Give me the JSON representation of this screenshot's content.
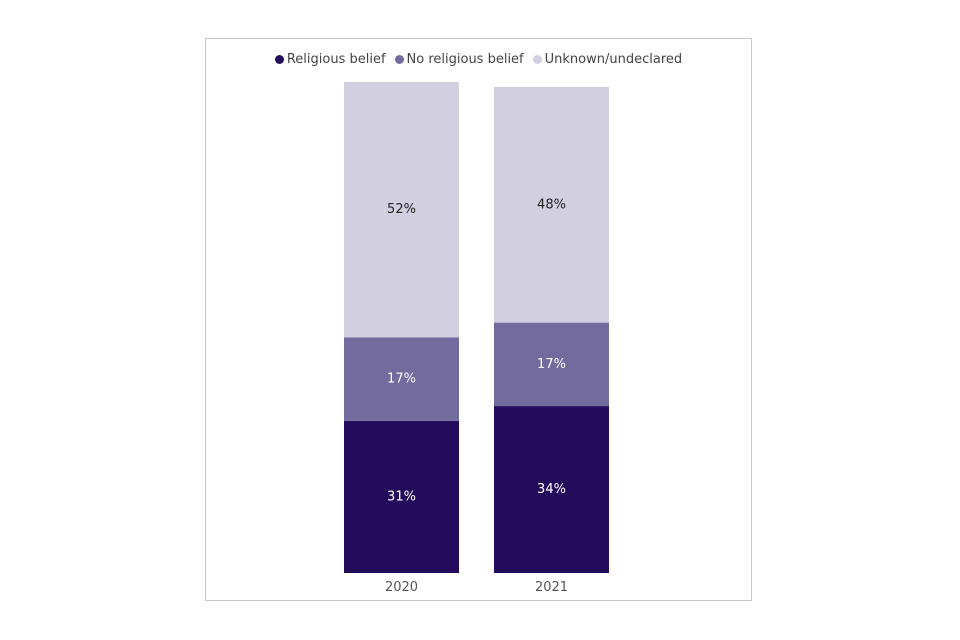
{
  "chart_data": {
    "type": "bar",
    "stacked": true,
    "title": "",
    "xlabel": "",
    "ylabel": "",
    "ylim": [
      0,
      100
    ],
    "legend_position": "top",
    "grid": false,
    "categories": [
      "2020",
      "2021"
    ],
    "series": [
      {
        "name": "Religious belief",
        "values": [
          31,
          34
        ],
        "labels": [
          "31%",
          "34%"
        ],
        "color": "#230c5c",
        "label_color": "#ffffff"
      },
      {
        "name": "No religious belief",
        "values": [
          17,
          17
        ],
        "labels": [
          "17%",
          "17%"
        ],
        "color": "#736a9d",
        "label_color": "#ffffff"
      },
      {
        "name": "Unknown/undeclared",
        "values": [
          52,
          48
        ],
        "labels": [
          "52%",
          "48%"
        ],
        "color": "#d1cfe0",
        "label_color": "#222222"
      }
    ]
  }
}
